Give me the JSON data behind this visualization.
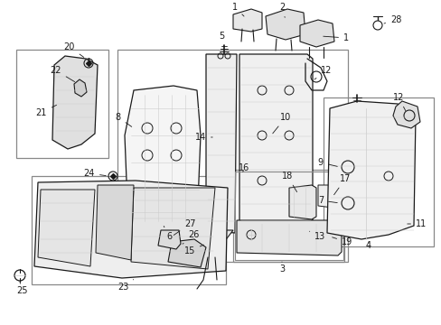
{
  "background_color": "#ffffff",
  "line_color": "#1a1a1a",
  "gray_color": "#888888",
  "light_gray": "#cccccc",
  "fig_width": 4.89,
  "fig_height": 3.6,
  "dpi": 100,
  "label_fs": 7,
  "annotation_fs": 6.5
}
